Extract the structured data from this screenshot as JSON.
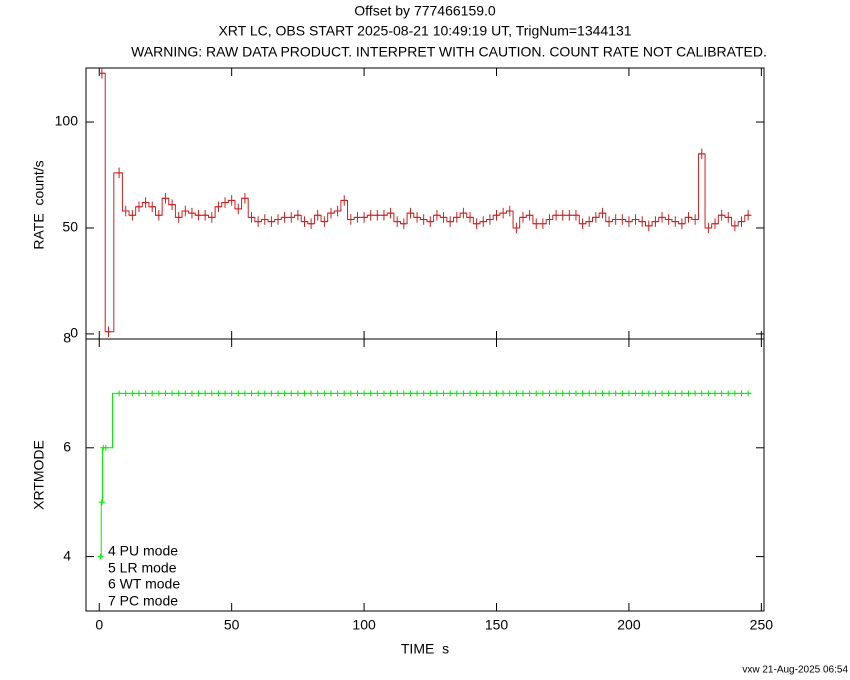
{
  "chart_data": [
    {
      "type": "step",
      "title": "Offset by 777466159.0",
      "subtitles": [
        "XRT LC, OBS START 2025-08-21 10:49:19 UT, TrigNum=1344131",
        "WARNING: RAW DATA PRODUCT. INTERPRET WITH CAUTION. COUNT RATE NOT CALIBRATED."
      ],
      "ylabel": "RATE  count/s",
      "xlim": [
        -5,
        251
      ],
      "ylim": [
        -2.4,
        125.5
      ],
      "yticks": [
        0,
        50,
        100
      ],
      "x": [
        1,
        3.5,
        7.5,
        10,
        12.5,
        15,
        17.5,
        20,
        22.5,
        25,
        27.5,
        30,
        32.5,
        35,
        37.5,
        40,
        42.5,
        45,
        47.5,
        50,
        52.5,
        55,
        57.5,
        60,
        62.5,
        65,
        67.5,
        70,
        72.5,
        75,
        77.5,
        80,
        82.5,
        85,
        87.5,
        90,
        92.5,
        95,
        97.5,
        100,
        102.5,
        105,
        107.5,
        110,
        112.5,
        115,
        117.5,
        120,
        122.5,
        125,
        127.5,
        130,
        132.5,
        135,
        137.5,
        140,
        142.5,
        145,
        147.5,
        150,
        152.5,
        155,
        157.5,
        160,
        162.5,
        165,
        167.5,
        170,
        172.5,
        175,
        177.5,
        180,
        182.5,
        185,
        187.5,
        190,
        192.5,
        195,
        197.5,
        200,
        202.5,
        205,
        207.5,
        210,
        212.5,
        215,
        217.5,
        220,
        222.5,
        225,
        227.5,
        230,
        232.5,
        235,
        237.5,
        240,
        242.5,
        245
      ],
      "series": [
        {
          "color": "#cc1f1f",
          "yerr": 2.5,
          "values": [
            123,
            1,
            76,
            58,
            56,
            60,
            62,
            60,
            56,
            64,
            61,
            55,
            58,
            57,
            56,
            56,
            55,
            60,
            62,
            63,
            59,
            64,
            55,
            53,
            54,
            53,
            54,
            55,
            55,
            56,
            53,
            52,
            56,
            53,
            57,
            58,
            63,
            54,
            55,
            55,
            56,
            56,
            56,
            57,
            53,
            52,
            57,
            55,
            54,
            53,
            56,
            55,
            53,
            55,
            57,
            55,
            52,
            53,
            54,
            56,
            57,
            58,
            50,
            55,
            56,
            52,
            52,
            54,
            56,
            56,
            56,
            56,
            52,
            53,
            55,
            57,
            53,
            54,
            54,
            53,
            54,
            53,
            51,
            53,
            55,
            54,
            53,
            52,
            55,
            54,
            85,
            50,
            52,
            56,
            55,
            51,
            53,
            56
          ]
        }
      ]
    },
    {
      "type": "step",
      "xlabel": "TIME  s",
      "ylabel": "XRTMODE",
      "xlim": [
        -5,
        251
      ],
      "ylim": [
        3,
        8
      ],
      "yticks": [
        4,
        6,
        8
      ],
      "xticks": [
        0,
        50,
        100,
        150,
        200,
        250
      ],
      "annotations": [
        "4 PU mode",
        "5 LR mode",
        "6 WT mode",
        "7 PC mode"
      ],
      "footer": "vxw 21-Aug-2025 06:54",
      "x": [
        0.5,
        1,
        1.5,
        2.5,
        7.5,
        10,
        12.5,
        15,
        17.5,
        20,
        22.5,
        25,
        27.5,
        30,
        32.5,
        35,
        37.5,
        40,
        42.5,
        45,
        47.5,
        50,
        52.5,
        55,
        57.5,
        60,
        62.5,
        65,
        67.5,
        70,
        72.5,
        75,
        77.5,
        80,
        82.5,
        85,
        87.5,
        90,
        92.5,
        95,
        97.5,
        100,
        102.5,
        105,
        107.5,
        110,
        112.5,
        115,
        117.5,
        120,
        122.5,
        125,
        127.5,
        130,
        132.5,
        135,
        137.5,
        140,
        142.5,
        145,
        147.5,
        150,
        152.5,
        155,
        157.5,
        160,
        162.5,
        165,
        167.5,
        170,
        172.5,
        175,
        177.5,
        180,
        182.5,
        185,
        187.5,
        190,
        192.5,
        195,
        197.5,
        200,
        202.5,
        205,
        207.5,
        210,
        212.5,
        215,
        217.5,
        220,
        222.5,
        225,
        227.5,
        230,
        232.5,
        235,
        237.5,
        240,
        242.5,
        245
      ],
      "series": [
        {
          "color": "#00ee00",
          "values": [
            4,
            5,
            6,
            6,
            7,
            7,
            7,
            7,
            7,
            7,
            7,
            7,
            7,
            7,
            7,
            7,
            7,
            7,
            7,
            7,
            7,
            7,
            7,
            7,
            7,
            7,
            7,
            7,
            7,
            7,
            7,
            7,
            7,
            7,
            7,
            7,
            7,
            7,
            7,
            7,
            7,
            7,
            7,
            7,
            7,
            7,
            7,
            7,
            7,
            7,
            7,
            7,
            7,
            7,
            7,
            7,
            7,
            7,
            7,
            7,
            7,
            7,
            7,
            7,
            7,
            7,
            7,
            7,
            7,
            7,
            7,
            7,
            7,
            7,
            7,
            7,
            7,
            7,
            7,
            7,
            7,
            7,
            7,
            7,
            7,
            7,
            7,
            7,
            7,
            7,
            7,
            7,
            7,
            7,
            7,
            7,
            7,
            7,
            7,
            7
          ]
        }
      ]
    }
  ]
}
